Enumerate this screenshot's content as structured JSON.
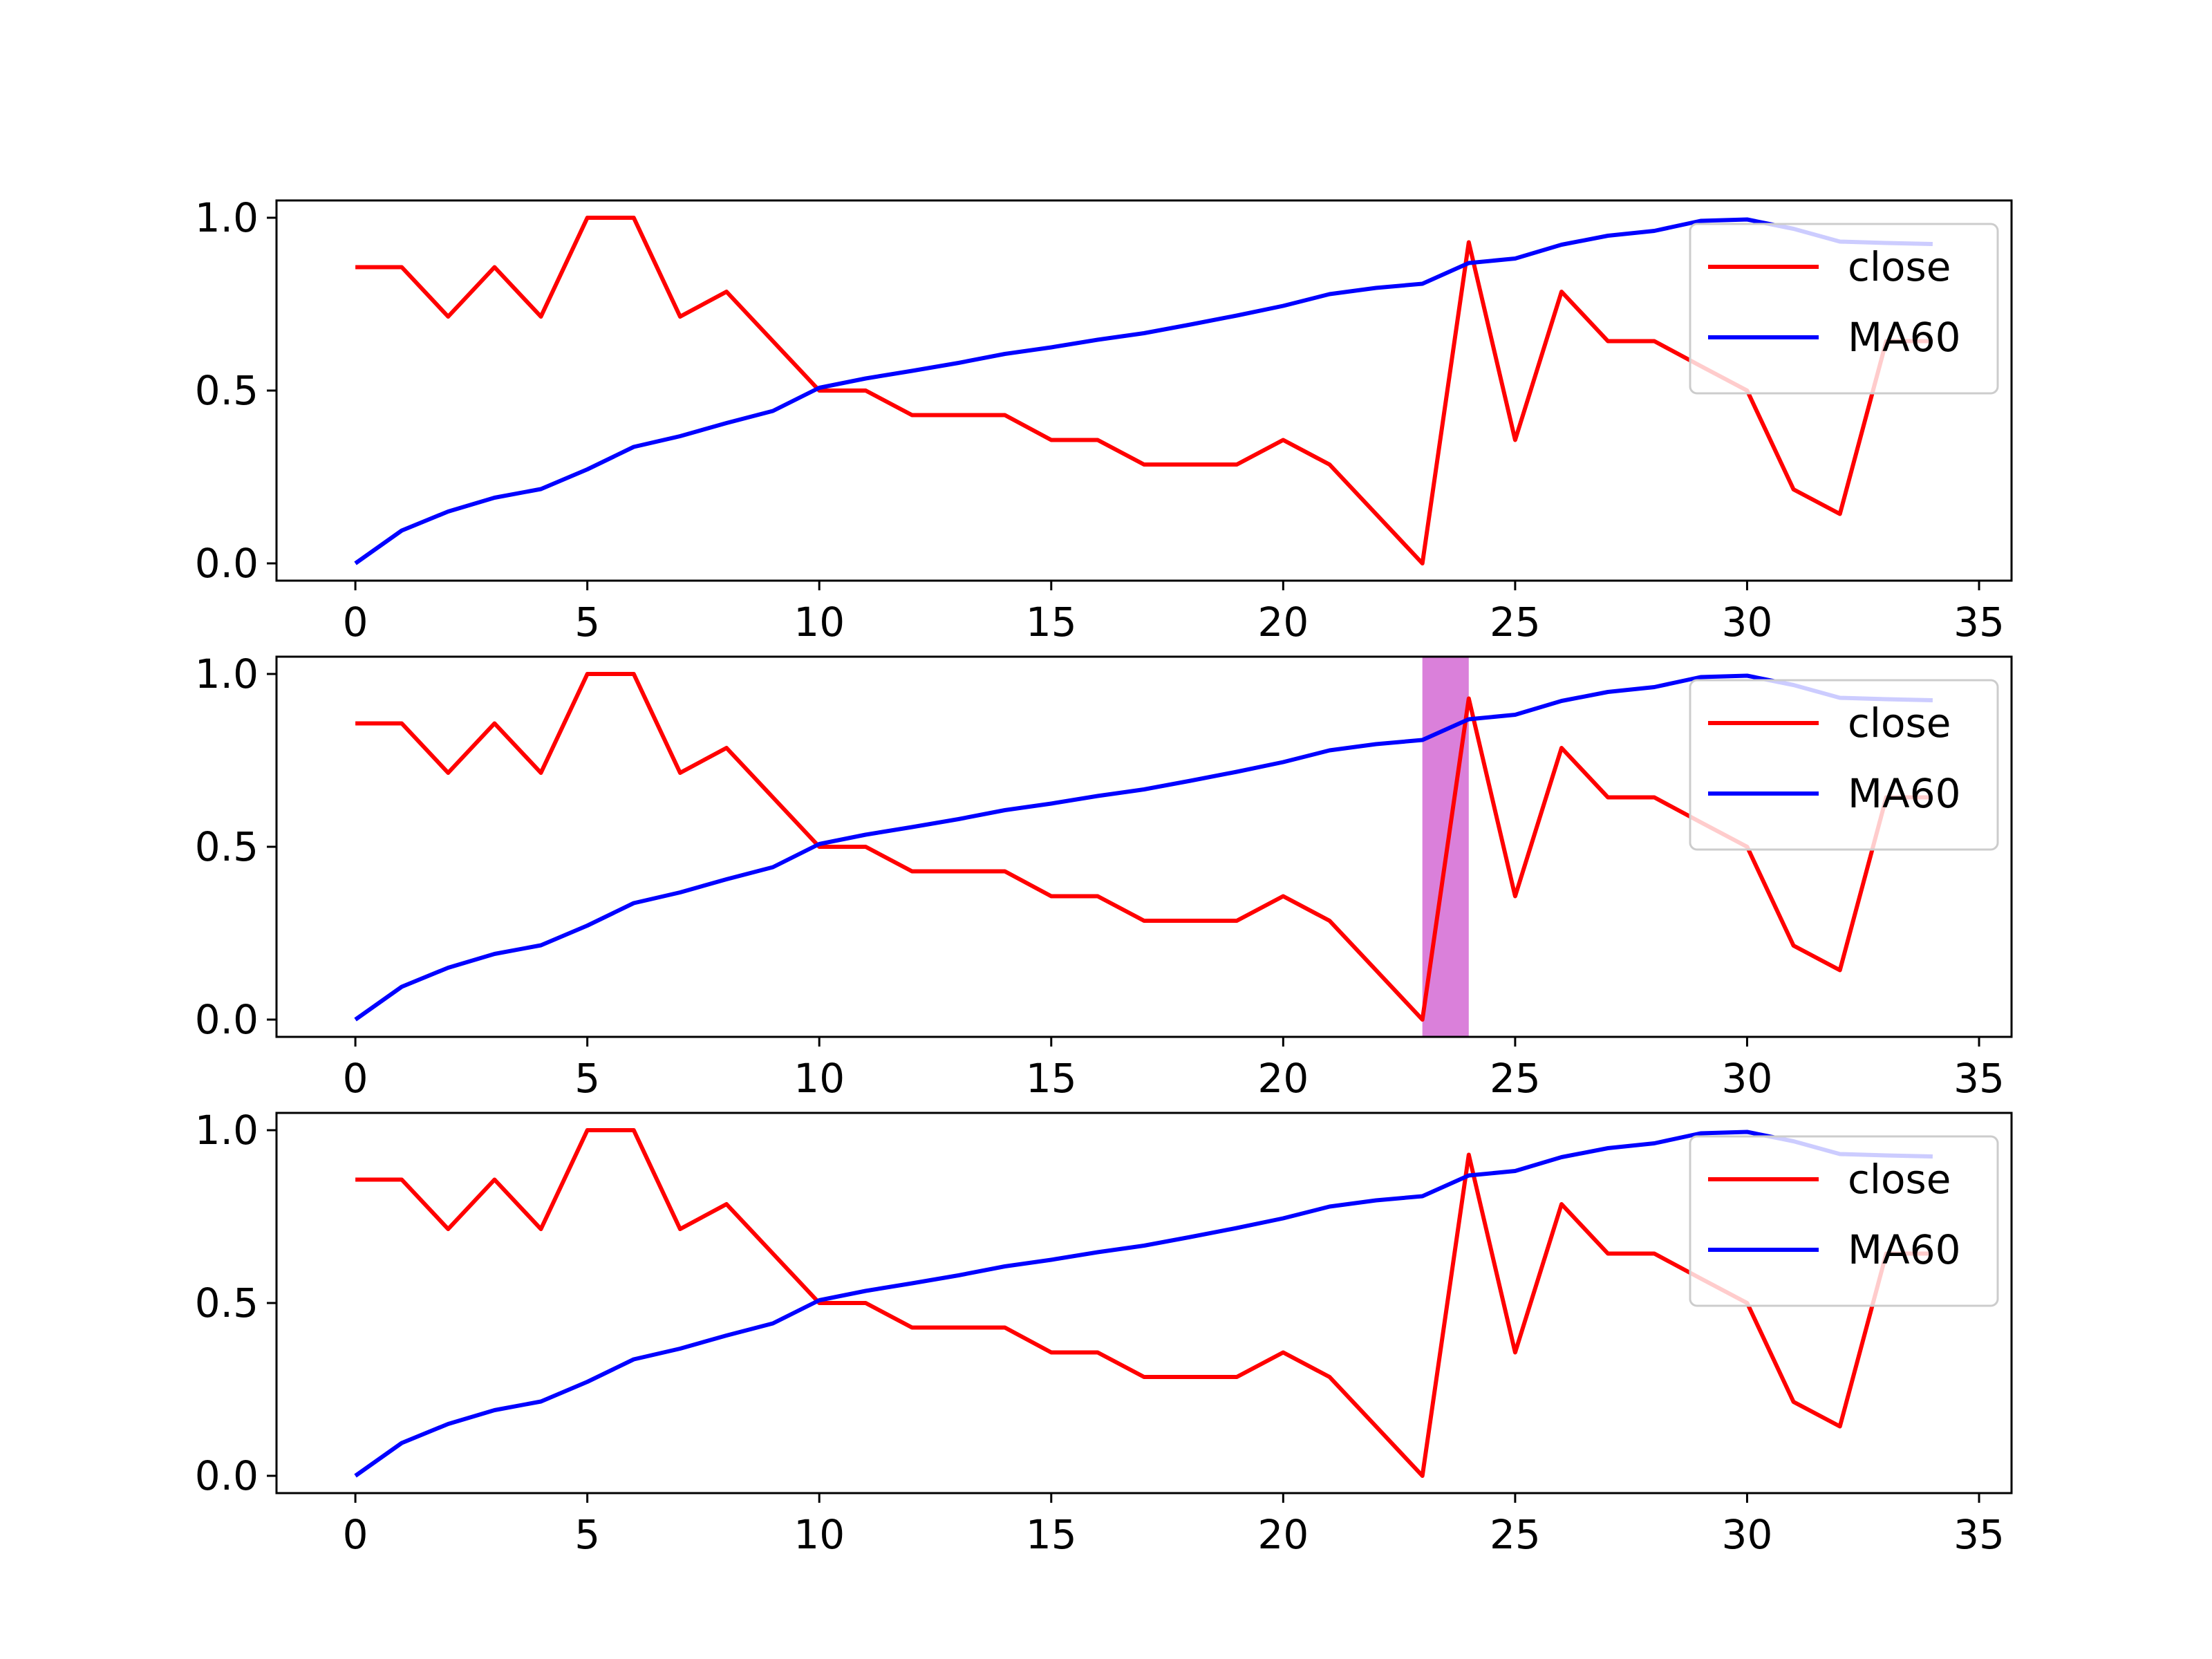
{
  "chart_data": [
    {
      "type": "line",
      "x": [
        0,
        1,
        2,
        3,
        4,
        5,
        6,
        7,
        8,
        9,
        10,
        11,
        12,
        13,
        14,
        15,
        16,
        17,
        18,
        19,
        20,
        21,
        22,
        23,
        24,
        25,
        26,
        27,
        28,
        29,
        30,
        31,
        32,
        33,
        34
      ],
      "series": [
        {
          "name": "close",
          "color": "#ff0000",
          "values": [
            0.857,
            0.857,
            0.714,
            0.857,
            0.714,
            1.0,
            1.0,
            0.714,
            0.786,
            0.643,
            0.5,
            0.5,
            0.429,
            0.429,
            0.429,
            0.357,
            0.357,
            0.286,
            0.286,
            0.286,
            0.357,
            0.286,
            0.143,
            0.0,
            0.929,
            0.357,
            0.786,
            0.643,
            0.643,
            0.571,
            0.5,
            0.214,
            0.143,
            0.643,
            0.643
          ]
        },
        {
          "name": "MA60",
          "color": "#0000ff",
          "values": [
            0.0,
            0.095,
            0.15,
            0.19,
            0.215,
            0.272,
            0.337,
            0.368,
            0.406,
            0.441,
            0.508,
            0.535,
            0.557,
            0.58,
            0.606,
            0.625,
            0.647,
            0.666,
            0.691,
            0.717,
            0.745,
            0.779,
            0.797,
            0.809,
            0.869,
            0.882,
            0.922,
            0.948,
            0.962,
            0.991,
            0.995,
            0.968,
            0.931,
            0.927,
            0.924
          ]
        }
      ],
      "xlim": [
        -1.7,
        35.7
      ],
      "ylim": [
        -0.05,
        1.05
      ],
      "x_ticks": [
        "0",
        "5",
        "10",
        "15",
        "20",
        "25",
        "30",
        "35"
      ],
      "y_ticks": [
        "0.0",
        "0.5",
        "1.0"
      ],
      "legend_position": "upper right",
      "highlight": null
    },
    {
      "type": "line",
      "x": [
        0,
        1,
        2,
        3,
        4,
        5,
        6,
        7,
        8,
        9,
        10,
        11,
        12,
        13,
        14,
        15,
        16,
        17,
        18,
        19,
        20,
        21,
        22,
        23,
        24,
        25,
        26,
        27,
        28,
        29,
        30,
        31,
        32,
        33,
        34
      ],
      "series": [
        {
          "name": "close",
          "color": "#ff0000",
          "values": [
            0.857,
            0.857,
            0.714,
            0.857,
            0.714,
            1.0,
            1.0,
            0.714,
            0.786,
            0.643,
            0.5,
            0.5,
            0.429,
            0.429,
            0.429,
            0.357,
            0.357,
            0.286,
            0.286,
            0.286,
            0.357,
            0.286,
            0.143,
            0.0,
            0.929,
            0.357,
            0.786,
            0.643,
            0.643,
            0.571,
            0.5,
            0.214,
            0.143,
            0.643,
            0.643
          ]
        },
        {
          "name": "MA60",
          "color": "#0000ff",
          "values": [
            0.0,
            0.095,
            0.15,
            0.19,
            0.215,
            0.272,
            0.337,
            0.368,
            0.406,
            0.441,
            0.508,
            0.535,
            0.557,
            0.58,
            0.606,
            0.625,
            0.647,
            0.666,
            0.691,
            0.717,
            0.745,
            0.779,
            0.797,
            0.809,
            0.869,
            0.882,
            0.922,
            0.948,
            0.962,
            0.991,
            0.995,
            0.968,
            0.931,
            0.927,
            0.924
          ]
        }
      ],
      "xlim": [
        -1.7,
        35.7
      ],
      "ylim": [
        -0.05,
        1.05
      ],
      "x_ticks": [
        "0",
        "5",
        "10",
        "15",
        "20",
        "25",
        "30",
        "35"
      ],
      "y_ticks": [
        "0.0",
        "0.5",
        "1.0"
      ],
      "legend_position": "upper right",
      "highlight": {
        "x_start": 23,
        "x_end": 24,
        "color": "#da80da"
      }
    },
    {
      "type": "line",
      "x": [
        0,
        1,
        2,
        3,
        4,
        5,
        6,
        7,
        8,
        9,
        10,
        11,
        12,
        13,
        14,
        15,
        16,
        17,
        18,
        19,
        20,
        21,
        22,
        23,
        24,
        25,
        26,
        27,
        28,
        29,
        30,
        31,
        32,
        33,
        34
      ],
      "series": [
        {
          "name": "close",
          "color": "#ff0000",
          "values": [
            0.857,
            0.857,
            0.714,
            0.857,
            0.714,
            1.0,
            1.0,
            0.714,
            0.786,
            0.643,
            0.5,
            0.5,
            0.429,
            0.429,
            0.429,
            0.357,
            0.357,
            0.286,
            0.286,
            0.286,
            0.357,
            0.286,
            0.143,
            0.0,
            0.929,
            0.357,
            0.786,
            0.643,
            0.643,
            0.571,
            0.5,
            0.214,
            0.143,
            0.643,
            0.643
          ]
        },
        {
          "name": "MA60",
          "color": "#0000ff",
          "values": [
            0.0,
            0.095,
            0.15,
            0.19,
            0.215,
            0.272,
            0.337,
            0.368,
            0.406,
            0.441,
            0.508,
            0.535,
            0.557,
            0.58,
            0.606,
            0.625,
            0.647,
            0.666,
            0.691,
            0.717,
            0.745,
            0.779,
            0.797,
            0.809,
            0.869,
            0.882,
            0.922,
            0.948,
            0.962,
            0.991,
            0.995,
            0.968,
            0.931,
            0.927,
            0.924
          ]
        }
      ],
      "xlim": [
        -1.7,
        35.7
      ],
      "ylim": [
        -0.05,
        1.05
      ],
      "x_ticks": [
        "0",
        "5",
        "10",
        "15",
        "20",
        "25",
        "30",
        "35"
      ],
      "y_ticks": [
        "0.0",
        "0.5",
        "1.0"
      ],
      "legend_position": "upper right",
      "highlight": null
    }
  ]
}
